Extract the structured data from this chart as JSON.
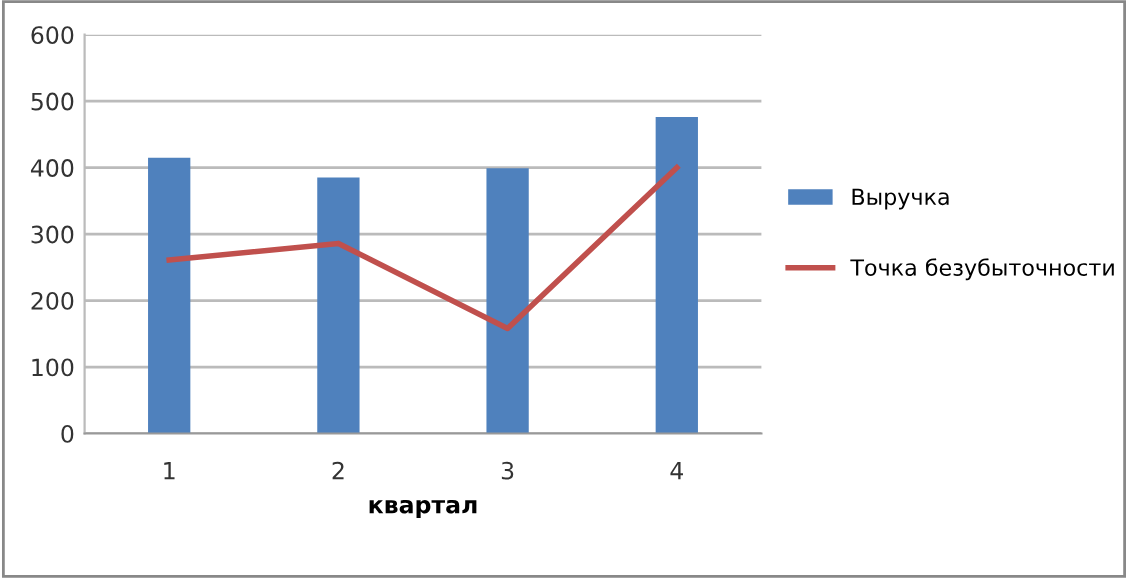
{
  "chart_data": {
    "type": "bar",
    "xlabel": "квартал",
    "categories": [
      "1",
      "2",
      "3",
      "4"
    ],
    "series": [
      {
        "name": "Выручка",
        "color": "#4f81bd",
        "values": [
          415,
          385,
          399,
          476
        ]
      },
      {
        "name": "Точка безубыточности",
        "type": "line",
        "color": "#c0504d",
        "values": [
          261,
          286,
          158,
          400
        ]
      }
    ],
    "ylim": [
      0,
      600
    ],
    "yticks": [
      0,
      100,
      200,
      300,
      400,
      500,
      600
    ],
    "grid": "y",
    "legend": "right",
    "marker": "none"
  }
}
